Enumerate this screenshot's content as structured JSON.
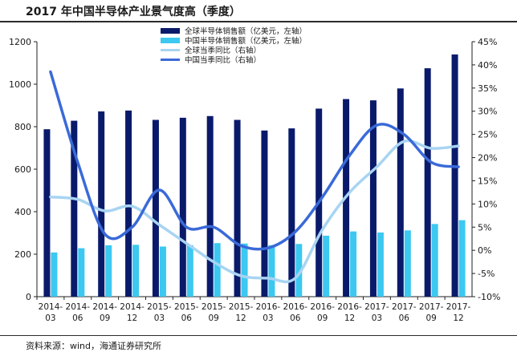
{
  "title": "2017 年中国半导体产业景气度高（季度）",
  "source": "资料来源：wind，海通证券研究所",
  "colors": {
    "global_sales": "#0a1a6b",
    "china_sales": "#3cc8f0",
    "global_yoy": "#a8d4f2",
    "china_yoy": "#3a6ad8",
    "axis": "#222222"
  },
  "chart_data": {
    "type": "bar+line",
    "categories": [
      "2014-03",
      "2014-06",
      "2014-09",
      "2014-12",
      "2015-03",
      "2015-06",
      "2015-09",
      "2015-12",
      "2016-03",
      "2016-06",
      "2016-09",
      "2016-12",
      "2017-03",
      "2017-06",
      "2017-09",
      "2017-12"
    ],
    "category_labels": [
      [
        "2014-",
        "03"
      ],
      [
        "2014-",
        "06"
      ],
      [
        "2014-",
        "09"
      ],
      [
        "2014-",
        "12"
      ],
      [
        "2015-",
        "03"
      ],
      [
        "2015-",
        "06"
      ],
      [
        "2015-",
        "09"
      ],
      [
        "2015-",
        "12"
      ],
      [
        "2016-",
        "03"
      ],
      [
        "2016-",
        "06"
      ],
      [
        "2016-",
        "09"
      ],
      [
        "2016-",
        "12"
      ],
      [
        "2017-",
        "03"
      ],
      [
        "2017-",
        "06"
      ],
      [
        "2017-",
        "09"
      ],
      [
        "2017-",
        "12"
      ]
    ],
    "series": [
      {
        "name": "全球半导体销售额（亿美元，左轴）",
        "type": "bar",
        "axis": "left",
        "values": [
          788,
          828,
          872,
          876,
          832,
          842,
          850,
          832,
          782,
          792,
          885,
          930,
          924,
          980,
          1075,
          1140
        ]
      },
      {
        "name": "中国半导体销售额（亿美元，左轴）",
        "type": "bar",
        "axis": "left",
        "values": [
          208,
          228,
          242,
          244,
          236,
          242,
          252,
          250,
          242,
          248,
          287,
          307,
          302,
          312,
          342,
          360
        ]
      },
      {
        "name": "全球当季同比（右轴）",
        "type": "line",
        "axis": "right",
        "values": [
          11.5,
          11,
          8.5,
          9.5,
          5.5,
          1.5,
          -2.5,
          -5.5,
          -6,
          -6,
          4.5,
          12.5,
          18,
          23.5,
          22,
          22.5
        ]
      },
      {
        "name": "中国当季同比（右轴）",
        "type": "line",
        "axis": "right",
        "values": [
          38.5,
          19,
          3.5,
          5,
          13,
          5,
          5,
          1,
          0.5,
          4,
          11.5,
          20.5,
          27,
          25,
          19,
          18
        ]
      }
    ],
    "y_left": {
      "min": 0,
      "max": 1200,
      "ticks": [
        0,
        200,
        400,
        600,
        800,
        1000,
        1200
      ]
    },
    "y_right": {
      "min": -10,
      "max": 45,
      "tick_labels": [
        "-10%",
        "-5%",
        "0%",
        "5%",
        "10%",
        "15%",
        "20%",
        "25%",
        "30%",
        "35%",
        "40%",
        "45%"
      ],
      "ticks": [
        -10,
        -5,
        0,
        5,
        10,
        15,
        20,
        25,
        30,
        35,
        40,
        45
      ]
    },
    "legend_placement": "top-center",
    "grid": false
  }
}
